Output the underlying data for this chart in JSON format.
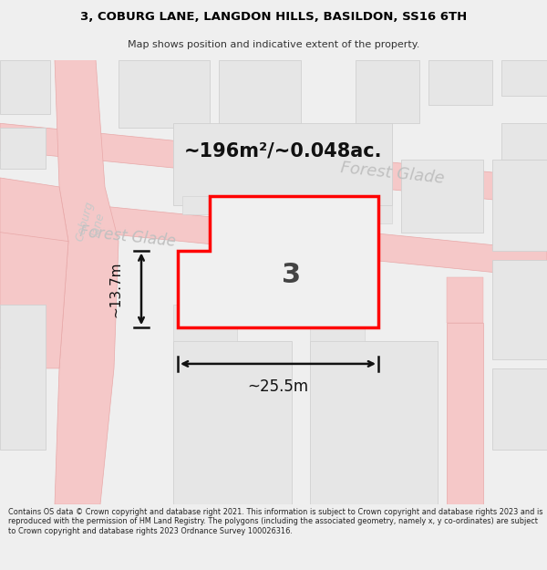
{
  "title_line1": "3, COBURG LANE, LANGDON HILLS, BASILDON, SS16 6TH",
  "title_line2": "Map shows position and indicative extent of the property.",
  "footer_text": "Contains OS data © Crown copyright and database right 2021. This information is subject to Crown copyright and database rights 2023 and is reproduced with the permission of HM Land Registry. The polygons (including the associated geometry, namely x, y co-ordinates) are subject to Crown copyright and database rights 2023 Ordnance Survey 100026316.",
  "area_label": "~196m²/~0.048ac.",
  "width_label": "~25.5m",
  "height_label": "~13.7m",
  "plot_number": "3",
  "bg_color": "#efefef",
  "map_bg": "#ffffff",
  "road_fill": "#f5c8c8",
  "road_edge": "#e8a8a8",
  "building_fill": "#e6e6e6",
  "building_edge": "#d0d0d0",
  "highlight_fill": "#f0f0f0",
  "highlight_stroke": "#ff0000",
  "street_color": "#c0c0c0",
  "title_color": "#000000",
  "footer_color": "#222222",
  "dim_color": "#111111"
}
